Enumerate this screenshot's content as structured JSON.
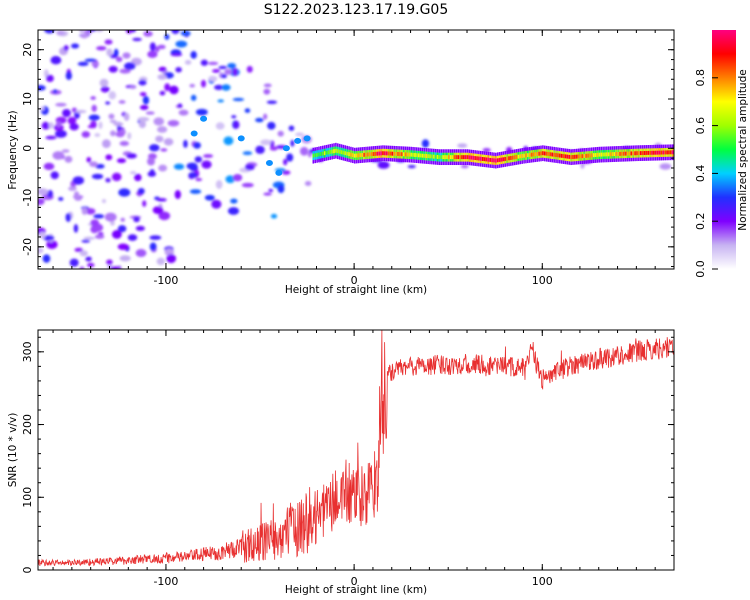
{
  "title": "S122.2023.123.17.19.G05",
  "chart_data": [
    {
      "type": "heatmap",
      "xlabel": "Height of straight line (km)",
      "ylabel": "Frequency (Hz)",
      "xlim": [
        -168,
        170
      ],
      "ylim": [
        -24.5,
        24
      ],
      "xticks": [
        -100,
        0,
        100
      ],
      "xtick_labels": [
        "-100",
        "0",
        "100"
      ],
      "yticks": [
        -20,
        -10,
        0,
        10,
        20
      ],
      "ytick_labels": [
        "-20",
        "-10",
        "0",
        "10",
        "20"
      ],
      "colorbar": {
        "label": "Normalized spectral amplitude",
        "range": [
          0,
          1
        ],
        "ticks": [
          0,
          0.2,
          0.4,
          0.6,
          0.8
        ],
        "tick_labels": [
          "0.0",
          "0.2",
          "0.4",
          "0.6",
          "0.8"
        ],
        "colors": [
          "#ffffff",
          "#c7b3f2",
          "#7f00ff",
          "#2030ff",
          "#00d0ff",
          "#00ff40",
          "#a0ff00",
          "#ffff00",
          "#ff8000",
          "#ff0000",
          "#ff0080"
        ]
      },
      "ridge": [
        {
          "x": -22,
          "y": -1.5,
          "a": 0.55
        },
        {
          "x": -10,
          "y": -0.5,
          "a": 0.65
        },
        {
          "x": 0,
          "y": -1.5,
          "a": 0.7
        },
        {
          "x": 15,
          "y": -1,
          "a": 0.95
        },
        {
          "x": 30,
          "y": -1.3,
          "a": 0.7
        },
        {
          "x": 45,
          "y": -1.8,
          "a": 0.6
        },
        {
          "x": 60,
          "y": -1.8,
          "a": 0.95
        },
        {
          "x": 75,
          "y": -2.5,
          "a": 0.95
        },
        {
          "x": 90,
          "y": -1.5,
          "a": 0.7
        },
        {
          "x": 100,
          "y": -1,
          "a": 0.85
        },
        {
          "x": 115,
          "y": -1.8,
          "a": 0.9
        },
        {
          "x": 130,
          "y": -1.3,
          "a": 0.7
        },
        {
          "x": 150,
          "y": -1,
          "a": 0.85
        },
        {
          "x": 170,
          "y": -0.8,
          "a": 0.95
        }
      ]
    },
    {
      "type": "line",
      "xlabel": "Height of straight line (km)",
      "ylabel": "SNR (10 * v/v)",
      "xlim": [
        -168,
        170
      ],
      "ylim": [
        0,
        330
      ],
      "xticks": [
        -100,
        0,
        100
      ],
      "xtick_labels": [
        "-100",
        "0",
        "100"
      ],
      "yticks": [
        0,
        100,
        200,
        300
      ],
      "ytick_labels": [
        "0",
        "100",
        "200",
        "300"
      ],
      "line_color": "#e83030",
      "series": [
        {
          "x": [
            -168,
            -150,
            -130,
            -110,
            -90,
            -70,
            -55,
            -40,
            -30,
            -20,
            -10,
            -5,
            0,
            5,
            10,
            13,
            15,
            18,
            22,
            30,
            45,
            60,
            80,
            90,
            95,
            100,
            115,
            130,
            150,
            170
          ],
          "values": [
            10,
            10,
            12,
            15,
            18,
            25,
            35,
            45,
            60,
            75,
            95,
            110,
            95,
            100,
            110,
            150,
            240,
            270,
            275,
            280,
            282,
            283,
            280,
            278,
            300,
            260,
            282,
            290,
            300,
            308
          ]
        }
      ]
    }
  ]
}
